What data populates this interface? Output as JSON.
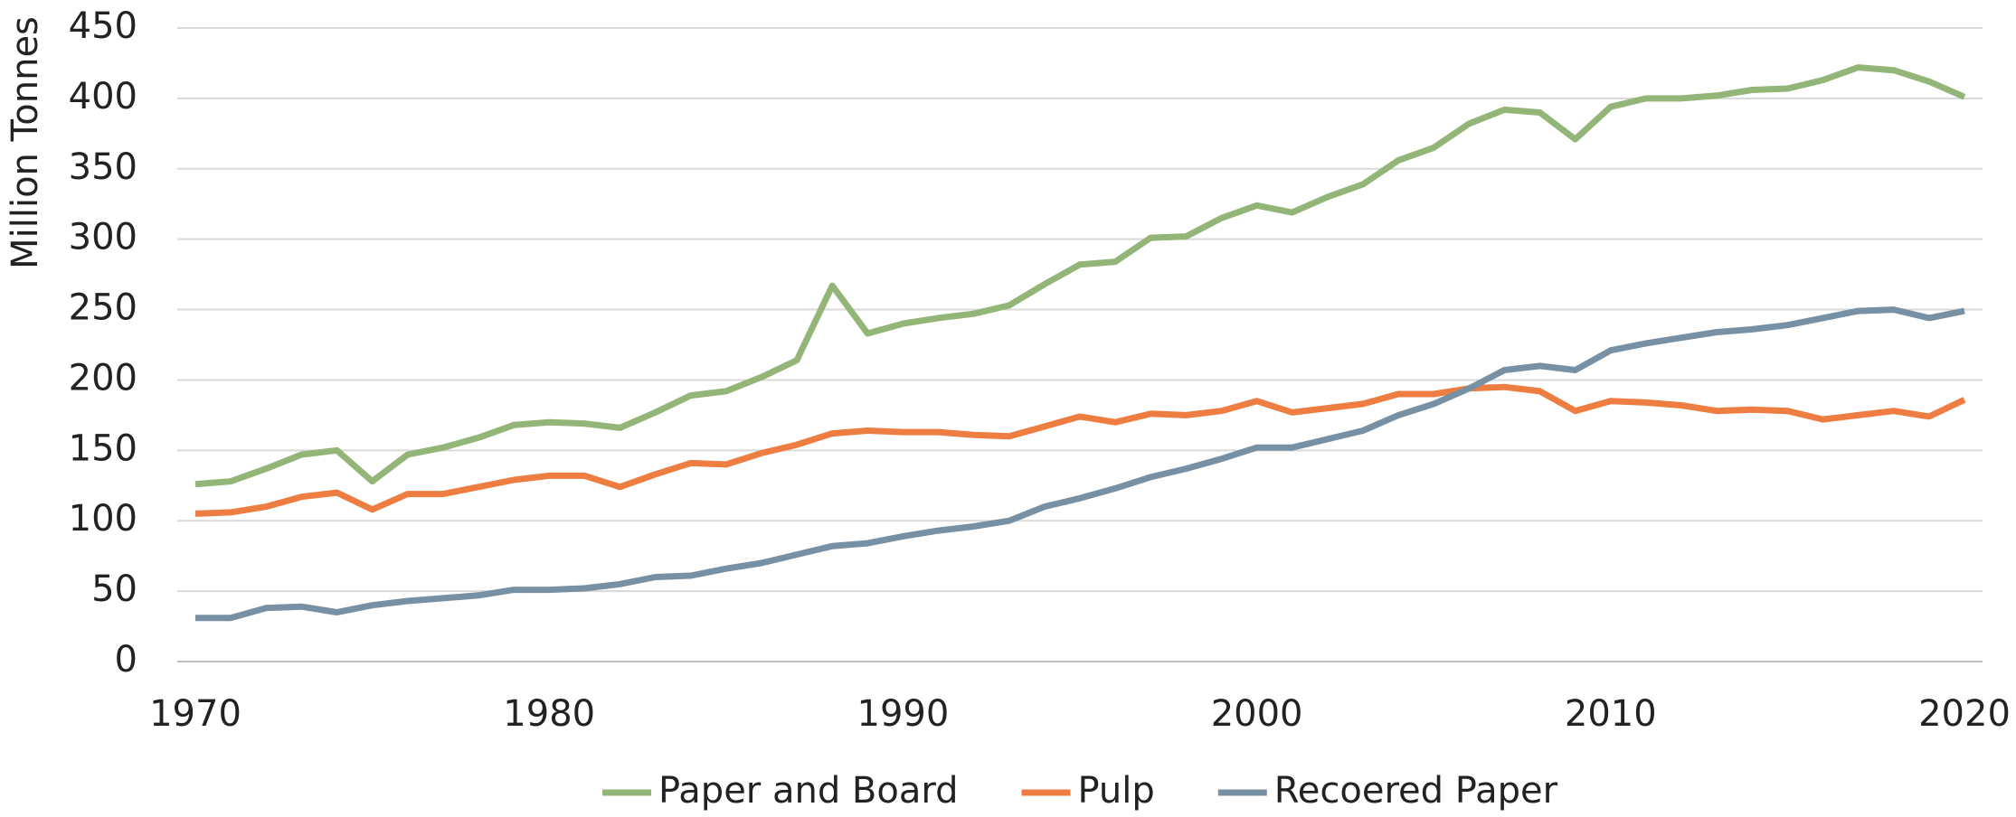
{
  "chart_data": {
    "type": "line",
    "y_label": "Million Tonnes",
    "x": [
      1970,
      1971,
      1972,
      1973,
      1974,
      1975,
      1976,
      1977,
      1978,
      1979,
      1980,
      1981,
      1982,
      1983,
      1984,
      1985,
      1986,
      1987,
      1988,
      1989,
      1990,
      1991,
      1992,
      1993,
      1994,
      1995,
      1996,
      1997,
      1998,
      1999,
      2000,
      2001,
      2002,
      2003,
      2004,
      2005,
      2006,
      2007,
      2008,
      2009,
      2010,
      2011,
      2012,
      2013,
      2014,
      2015,
      2016,
      2017,
      2018,
      2019,
      2020
    ],
    "series": [
      {
        "name": "Paper and Board",
        "color": "#93b577",
        "values": [
          126,
          128,
          137,
          147,
          150,
          128,
          147,
          152,
          159,
          168,
          170,
          169,
          166,
          177,
          189,
          192,
          202,
          214,
          267,
          233,
          240,
          244,
          247,
          253,
          268,
          282,
          284,
          301,
          302,
          315,
          324,
          319,
          330,
          339,
          356,
          365,
          382,
          392,
          390,
          371,
          394,
          400,
          400,
          402,
          406,
          407,
          413,
          422,
          420,
          412,
          401
        ]
      },
      {
        "name": "Pulp",
        "color": "#ed7d41",
        "values": [
          105,
          106,
          110,
          117,
          120,
          108,
          119,
          119,
          124,
          129,
          132,
          132,
          124,
          133,
          141,
          140,
          148,
          154,
          162,
          164,
          163,
          163,
          161,
          160,
          167,
          174,
          170,
          176,
          175,
          178,
          185,
          177,
          180,
          183,
          190,
          190,
          194,
          195,
          192,
          178,
          185,
          184,
          182,
          178,
          179,
          178,
          172,
          175,
          178,
          174,
          186
        ]
      },
      {
        "name": "Recoered Paper",
        "color": "#7890a3",
        "values": [
          31,
          31,
          38,
          39,
          35,
          40,
          43,
          45,
          47,
          51,
          51,
          52,
          55,
          60,
          61,
          66,
          70,
          76,
          82,
          84,
          89,
          93,
          96,
          100,
          110,
          116,
          123,
          131,
          137,
          144,
          152,
          152,
          158,
          164,
          175,
          183,
          194,
          207,
          210,
          207,
          221,
          226,
          230,
          234,
          236,
          239,
          244,
          249,
          250,
          244,
          249
        ]
      }
    ],
    "xlim": [
      1970,
      2020
    ],
    "xticks": [
      1970,
      1980,
      1990,
      2000,
      2010,
      2020
    ],
    "ylim": [
      0,
      450
    ],
    "yticks": [
      0,
      50,
      100,
      150,
      200,
      250,
      300,
      350,
      400,
      450
    ],
    "grid": true,
    "legend": "bottom"
  }
}
